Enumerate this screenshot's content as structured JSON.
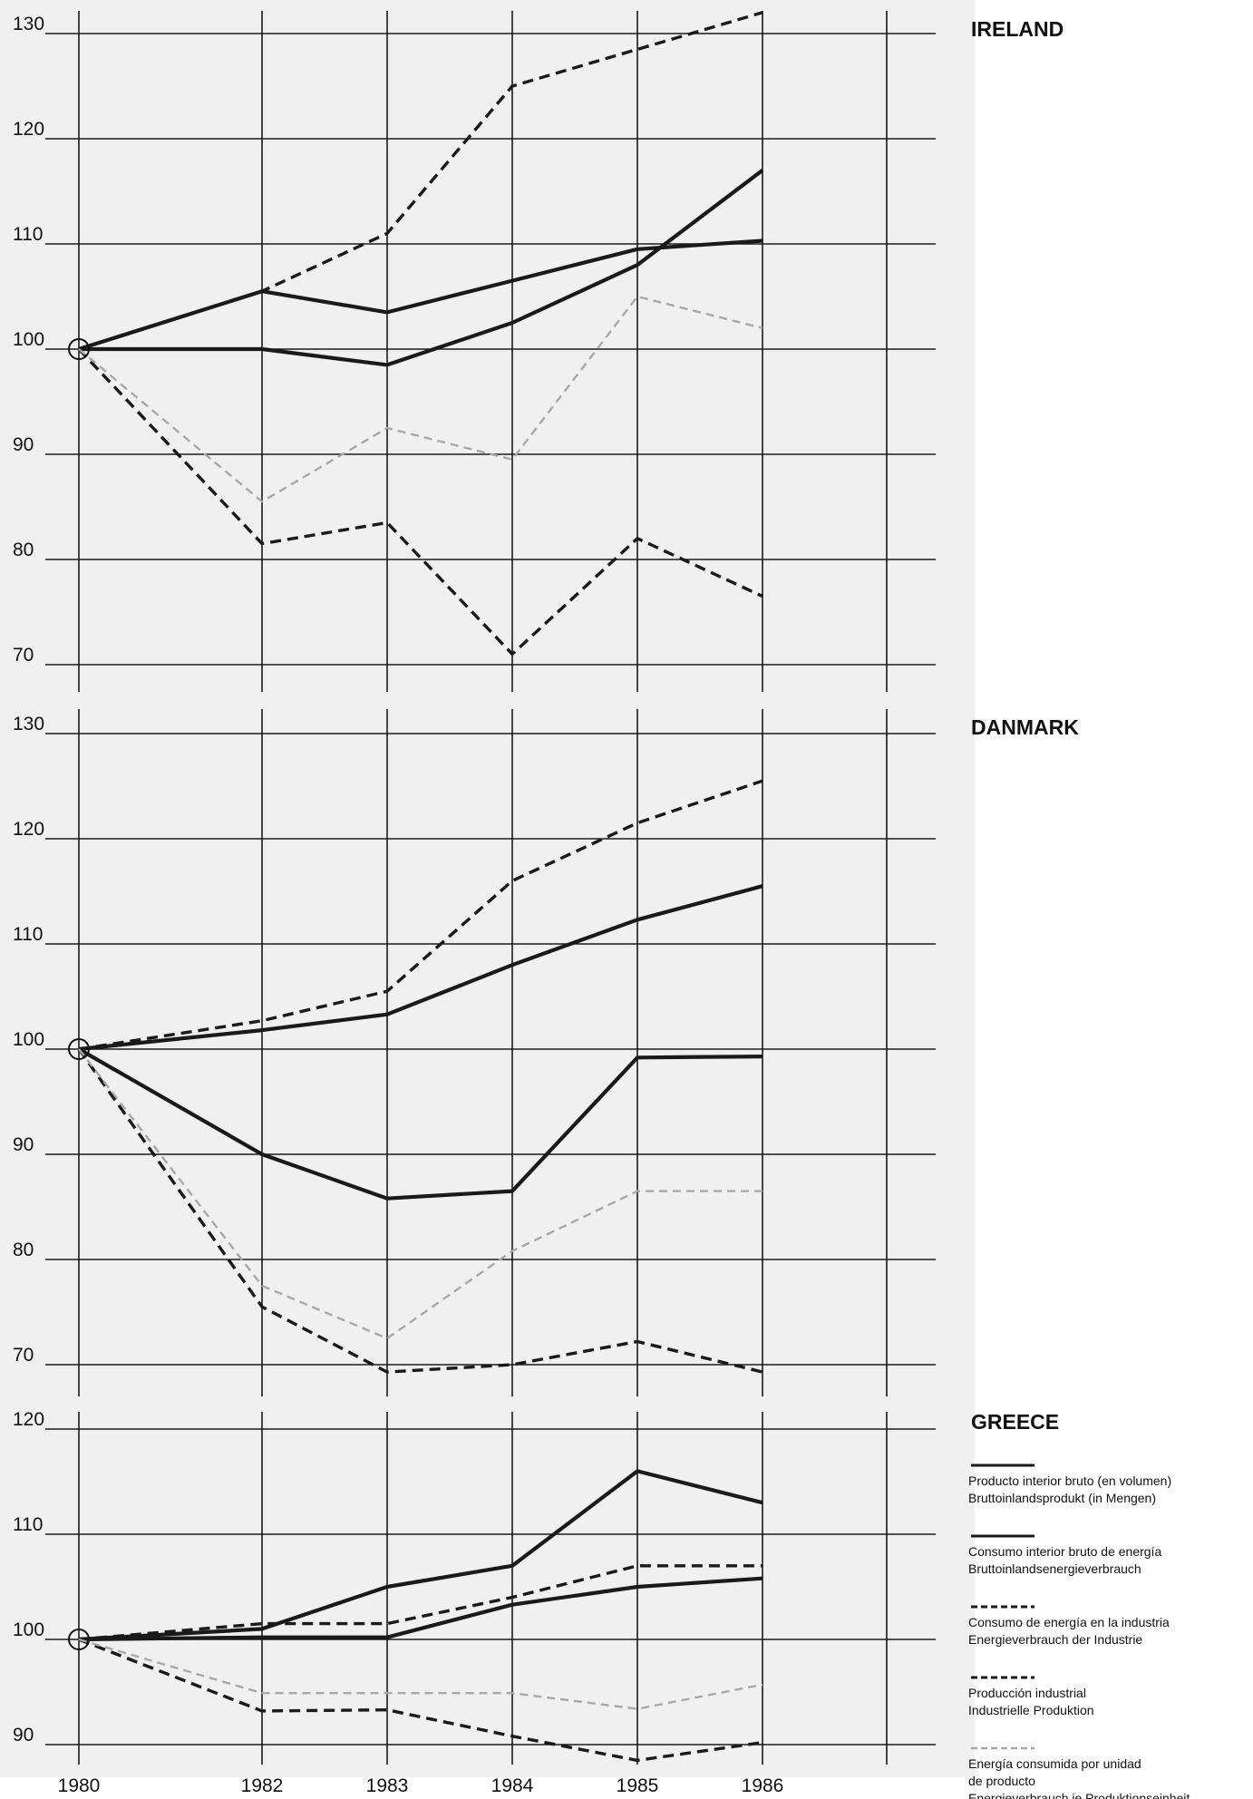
{
  "chart_data": [
    {
      "type": "line",
      "title": "IRELAND",
      "x": [
        "1980",
        "1982",
        "1983",
        "1984",
        "1985",
        "1986"
      ],
      "ylim": [
        70,
        130
      ],
      "yticks": [
        130,
        120,
        110,
        100,
        90,
        80,
        70
      ],
      "grid": true,
      "series": [
        {
          "style": "gdp",
          "values": [
            100,
            105.5,
            103.5,
            106.5,
            109.5,
            110.3
          ]
        },
        {
          "style": "energy",
          "values": [
            100,
            100,
            98.5,
            102.5,
            108,
            117
          ]
        },
        {
          "style": "industry_energy",
          "values": [
            100,
            81.5,
            83.5,
            71,
            82,
            76.5
          ]
        },
        {
          "style": "industrial_production",
          "values": [
            100,
            105.5,
            111,
            125,
            128.5,
            132
          ]
        },
        {
          "style": "intensity",
          "values": [
            100,
            85.5,
            92.5,
            89.5,
            105,
            102
          ]
        }
      ]
    },
    {
      "type": "line",
      "title": "DANMARK",
      "x": [
        "1980",
        "1982",
        "1983",
        "1984",
        "1985",
        "1986"
      ],
      "ylim": [
        70,
        130
      ],
      "yticks": [
        130,
        120,
        110,
        100,
        90,
        80,
        70
      ],
      "grid": true,
      "series": [
        {
          "style": "gdp",
          "values": [
            100,
            101.8,
            103.3,
            108,
            112.3,
            115.5
          ]
        },
        {
          "style": "energy",
          "values": [
            100,
            90,
            85.8,
            86.5,
            99.2,
            99.3
          ]
        },
        {
          "style": "industry_energy",
          "values": [
            100,
            75.5,
            69.3,
            70,
            72.2,
            69.3
          ]
        },
        {
          "style": "industrial_production",
          "values": [
            100,
            102.7,
            105.5,
            116,
            121.5,
            125.5
          ]
        },
        {
          "style": "intensity",
          "values": [
            100,
            77.5,
            72.5,
            80.8,
            86.5,
            86.5
          ]
        }
      ]
    },
    {
      "type": "line",
      "title": "GREECE",
      "x": [
        "1980",
        "1982",
        "1983",
        "1984",
        "1985",
        "1986"
      ],
      "ylim": [
        89,
        120
      ],
      "yticks": [
        120,
        110,
        100,
        90
      ],
      "grid": true,
      "series": [
        {
          "style": "gdp",
          "values": [
            100,
            100.2,
            100.2,
            103.3,
            105,
            105.8
          ]
        },
        {
          "style": "energy",
          "values": [
            100,
            101,
            105,
            107,
            116,
            113
          ]
        },
        {
          "style": "industry_energy",
          "values": [
            100,
            101.5,
            101.5,
            104,
            107,
            107
          ]
        },
        {
          "style": "industrial_production",
          "values": [
            100,
            93.2,
            93.3,
            90.8,
            88.5,
            90.2
          ]
        },
        {
          "style": "intensity",
          "values": [
            100,
            94.9,
            94.9,
            94.9,
            93.4,
            95.7
          ]
        }
      ]
    }
  ],
  "legend": [
    {
      "style": "gdp",
      "lines": [
        "Producto interior bruto (en volumen)",
        "Bruttoinlandsprodukt (in Mengen)"
      ]
    },
    {
      "style": "energy",
      "lines": [
        "Consumo interior bruto de energía",
        "Bruttoinlandsenergieverbrauch"
      ]
    },
    {
      "style": "industry_energy",
      "lines": [
        "Consumo de energía en la industria",
        "Energieverbrauch der Industrie"
      ]
    },
    {
      "style": "industrial_production",
      "lines": [
        "Producción industrial",
        "Industrielle Produktion"
      ]
    },
    {
      "style": "intensity",
      "lines": [
        "Energía consumida por unidad",
        "de producto",
        "Energieverbrauch je Produktionseinheit"
      ]
    }
  ],
  "colors": {
    "solid": "#1a1a1a",
    "dashed": "#1a1a1a",
    "light_dashed": "#a8a8a8",
    "panel_background": "#f0f0f0"
  }
}
